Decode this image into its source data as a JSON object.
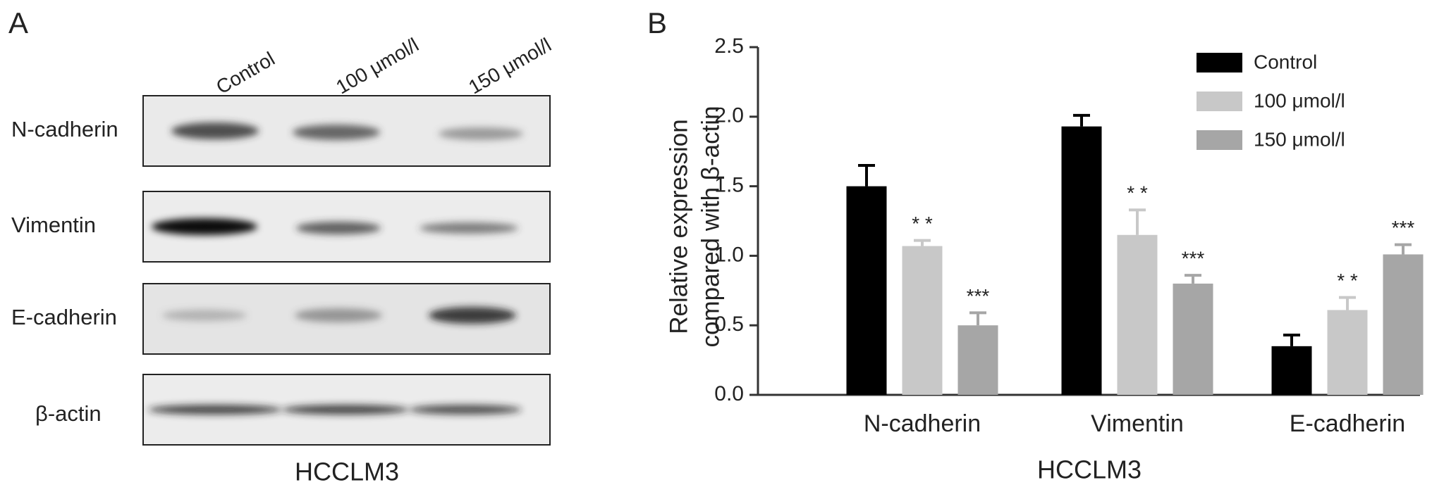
{
  "panel_a": {
    "label": "A",
    "lanes": [
      "Control",
      "100 μmol/l",
      "150 μmol/l"
    ],
    "rows": [
      "N-cadherin",
      "Vimentin",
      "E-cadherin",
      "β-actin"
    ],
    "xlabel": "HCCLM3"
  },
  "chart_data": {
    "type": "bar",
    "panel_label": "B",
    "categories": [
      "N-cadherin",
      "Vimentin",
      "E-cadherin"
    ],
    "xlabel": "HCCLM3",
    "ylabel": [
      "Relative expression",
      "compared with β-actin"
    ],
    "ylim": [
      0,
      2.5
    ],
    "yticks": [
      {
        "value": 0,
        "label": "0.0"
      },
      0.5,
      {
        "value": 1,
        "label": "1.0"
      },
      1.5,
      {
        "value": 2,
        "label": "2.0"
      },
      2.5
    ],
    "series": [
      {
        "name": "Control",
        "color": "#000000",
        "values": [
          1.5,
          1.93,
          0.35
        ],
        "errors": [
          0.15,
          0.08,
          0.08
        ]
      },
      {
        "name": "100 μmol/l",
        "color": "#c8c8c8",
        "values": [
          1.07,
          1.15,
          0.61
        ],
        "errors": [
          0.04,
          0.18,
          0.09
        ],
        "labels": [
          "* *",
          "* *",
          "* *"
        ]
      },
      {
        "name": "150 μmol/l",
        "color": "#a6a6a6",
        "values": [
          0.5,
          0.8,
          1.01
        ],
        "errors": [
          0.09,
          0.06,
          0.07
        ],
        "labels": [
          "***",
          "***",
          "***"
        ]
      }
    ]
  }
}
